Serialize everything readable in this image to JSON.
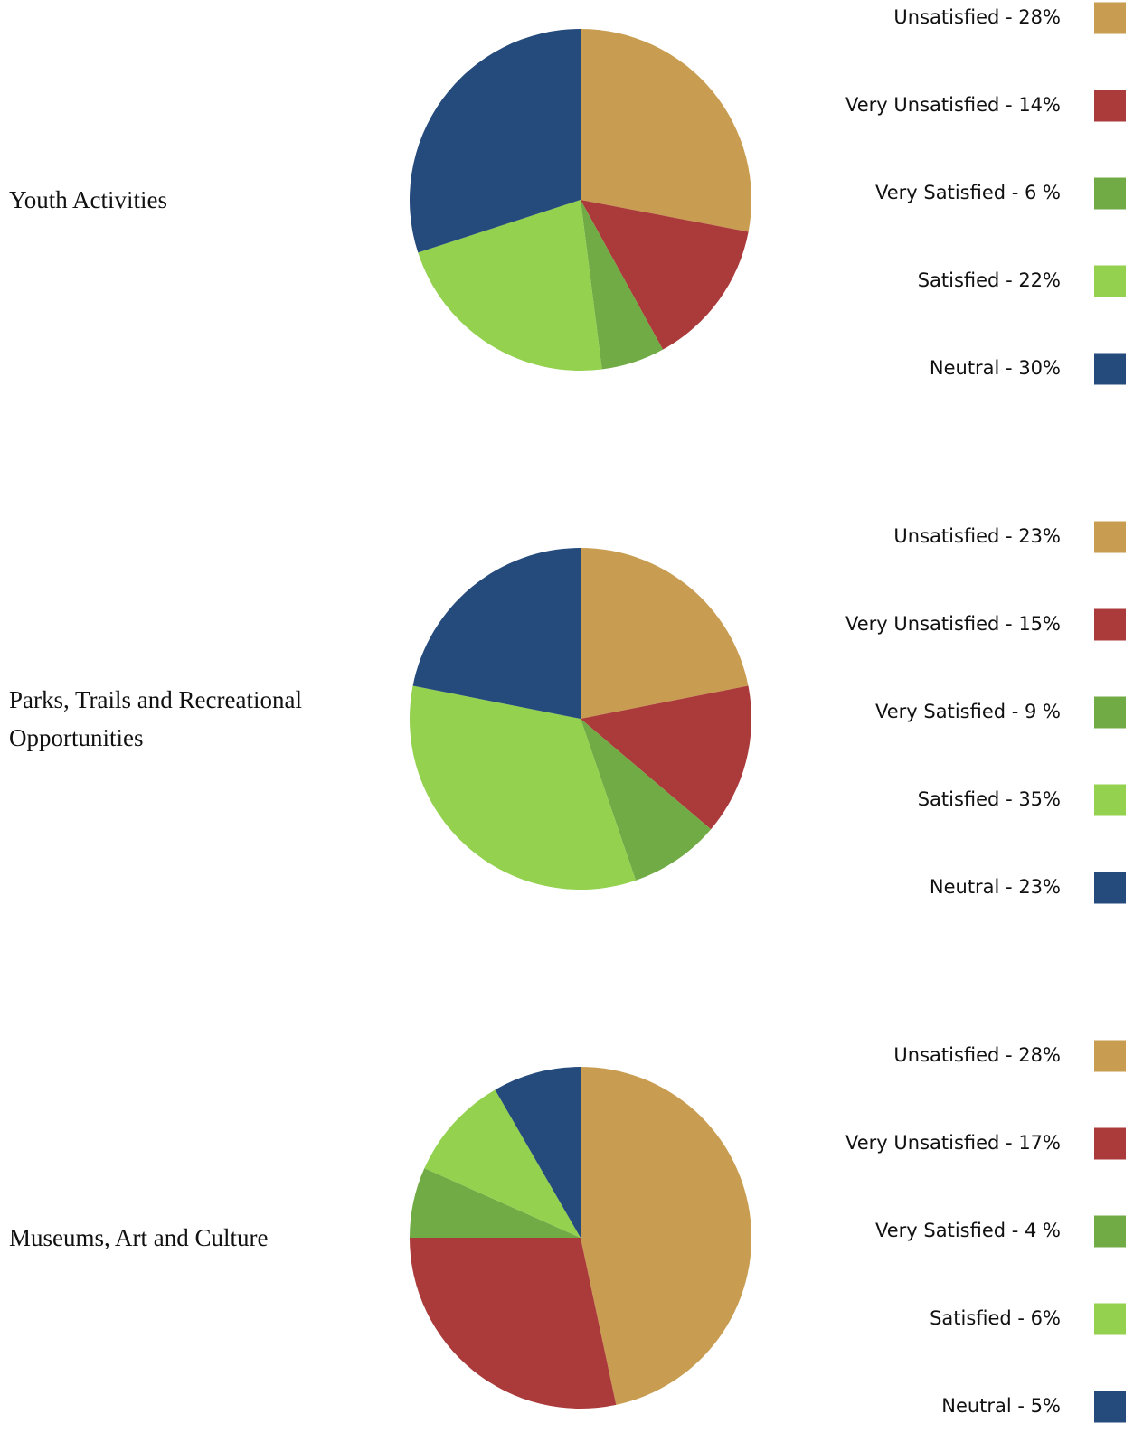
{
  "chart_data": [
    {
      "type": "pie",
      "title": "Youth Activities",
      "values": [
        28,
        14,
        6,
        22,
        30
      ],
      "value_labels": [
        "Unsatisfied - 28%",
        "Very Unsatisfied - 14%",
        "Very Satisfied - 6 %",
        "Satisfied - 22%",
        "Neutral - 30%"
      ],
      "colors": [
        "#c89d51",
        "#ab3a3b",
        "#71ab45",
        "#93d14f",
        "#254a7c"
      ]
    },
    {
      "type": "pie",
      "title": "Parks, Trails and Recreational Opportunities",
      "values": [
        23,
        15,
        9,
        35,
        23
      ],
      "value_labels": [
        "Unsatisfied - 23%",
        "Very Unsatisfied - 15%",
        "Very Satisfied - 9 %",
        "Satisfied - 35%",
        "Neutral - 23%"
      ],
      "colors": [
        "#c89d51",
        "#ab3a3b",
        "#71ab45",
        "#93d14f",
        "#254a7c"
      ]
    },
    {
      "type": "pie",
      "title": "Museums, Art and Culture",
      "values": [
        28,
        17,
        4,
        6,
        5
      ],
      "value_labels": [
        "Unsatisfied - 28%",
        "Very Unsatisfied - 17%",
        "Very Satisfied - 4 %",
        "Satisfied - 6%",
        "Neutral - 5%"
      ],
      "colors": [
        "#c89d51",
        "#ab3a3b",
        "#71ab45",
        "#93d14f",
        "#254a7c"
      ]
    }
  ]
}
